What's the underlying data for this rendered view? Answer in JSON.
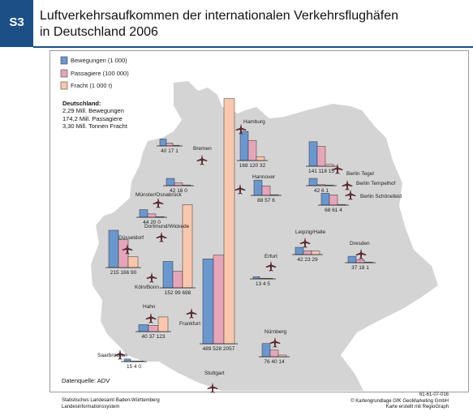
{
  "header": {
    "badge": "S3",
    "title_line1": "Luftverkehrsaufkommen der internationalen Verkehrsflughäfen",
    "title_line2": "in Deutschland 2006"
  },
  "legend": {
    "movements": "Bewegungen (1 000)",
    "passengers": "Passagiere (100 000)",
    "freight": "Fracht (1 000 t)"
  },
  "colors": {
    "movements": "#6a97cf",
    "passengers": "#e6a5b9",
    "freight": "#f9c7ad",
    "map_fill": "#d4d4d4",
    "plane": "#5a2a34",
    "badge": "#1c4f86"
  },
  "summary": {
    "heading": "Deutschland:",
    "line1": "2,29 Mill. Bewegungen",
    "line2": "174,2 Mill. Passagiere",
    "line3": "3,30 Mill. Tonnen Fracht"
  },
  "airports": [
    {
      "name": "Hamburg",
      "values": [
        168,
        120,
        32
      ],
      "labels": [
        "168",
        "120",
        "32"
      ]
    },
    {
      "name": "Bremen",
      "values": [
        40,
        17,
        1
      ],
      "labels": [
        "40",
        "17",
        "1"
      ]
    },
    {
      "name": "Hannover",
      "values": [
        88,
        57,
        6
      ],
      "labels": [
        "88",
        "57",
        "6"
      ]
    },
    {
      "name": "Berlin Tegel",
      "values": [
        141,
        118,
        15
      ],
      "labels": [
        "141",
        "118",
        "15"
      ]
    },
    {
      "name": "Berlin Tempelhof",
      "values": [
        42,
        6,
        1
      ],
      "labels": [
        "42",
        "6",
        "1"
      ]
    },
    {
      "name": "Berlin Schönefeld",
      "values": [
        68,
        61,
        4
      ],
      "labels": [
        "68",
        "61",
        "4"
      ]
    },
    {
      "name": "Münster/Osnabrück",
      "values": [
        42,
        16,
        0
      ],
      "labels": [
        "42",
        "16",
        "0"
      ]
    },
    {
      "name": "Dortmund/Wickede",
      "values": [
        44,
        20,
        0
      ],
      "labels": [
        "44",
        "20",
        "0"
      ]
    },
    {
      "name": "Düsseldorf",
      "values": [
        215,
        166,
        90
      ],
      "labels": [
        "215",
        "166",
        "90"
      ]
    },
    {
      "name": "Köln/Bonn",
      "values": [
        152,
        99,
        698
      ],
      "labels": [
        "152",
        "99",
        "698"
      ]
    },
    {
      "name": "Leipzig/Halle",
      "values": [
        42,
        23,
        29
      ],
      "labels": [
        "42",
        "23",
        "29"
      ]
    },
    {
      "name": "Dresden",
      "values": [
        37,
        18,
        1
      ],
      "labels": [
        "37",
        "18",
        "1"
      ]
    },
    {
      "name": "Erfurt",
      "values": [
        13,
        4,
        5
      ],
      "labels": [
        "13",
        "4",
        "5"
      ]
    },
    {
      "name": "Frankfurt",
      "values": [
        489,
        528,
        2057
      ],
      "labels": [
        "489",
        "528",
        "2057"
      ]
    },
    {
      "name": "Hahn",
      "values": [
        40,
        37,
        123
      ],
      "labels": [
        "40",
        "37",
        "123"
      ]
    },
    {
      "name": "Saarbrücken",
      "values": [
        15,
        4,
        0
      ],
      "labels": [
        "15",
        "4",
        "0"
      ]
    },
    {
      "name": "Nürnberg",
      "values": [
        76,
        40,
        14
      ],
      "labels": [
        "76",
        "40",
        "14"
      ]
    },
    {
      "name": "Stuttgart",
      "values": [],
      "labels": []
    }
  ],
  "source": "Datenquelle: ADV",
  "footer": {
    "left1": "Statistisches Landesamt Baden-Württemberg",
    "left2": "Landesinformationssystem",
    "right1": "61-61-07-016",
    "right2": "© Kartengrundlage GfK GeoMarketing GmbH",
    "right3": "Karte erstellt mit RegioGraph"
  }
}
